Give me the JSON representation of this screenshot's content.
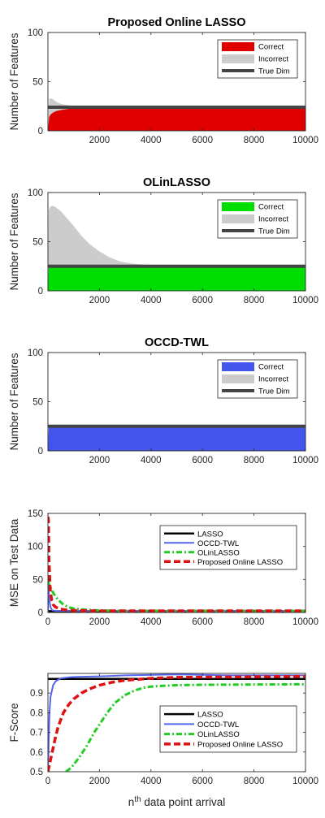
{
  "chart_data": [
    {
      "type": "area",
      "title": "Proposed Online LASSO",
      "ylabel": "Number of Features",
      "xlabel": "",
      "xlim": [
        0,
        10000
      ],
      "ylim": [
        0,
        100
      ],
      "xticks": [
        "2000",
        "4000",
        "6000",
        "8000",
        "10000"
      ],
      "yticks": [
        "0",
        "50",
        "100"
      ],
      "true_dim": 24,
      "legend": {
        "position": "top-right",
        "entries": [
          "Correct",
          "Incorrect",
          "True Dim"
        ]
      },
      "series": [
        {
          "name": "Correct",
          "color": "#e00000",
          "x": [
            0,
            50,
            100,
            150,
            200,
            300,
            400,
            600,
            800,
            1000,
            1500,
            2000,
            3000,
            5000,
            10000
          ],
          "values": [
            0,
            14,
            16.5,
            17.5,
            18.5,
            19.8,
            20.6,
            21.6,
            22.2,
            22.6,
            23.1,
            23.4,
            23.7,
            23.9,
            24
          ]
        },
        {
          "name": "Incorrect",
          "color": "#cccccc",
          "x": [
            0,
            50,
            100,
            200,
            300,
            400,
            500,
            700,
            1000,
            1500,
            2000,
            3000,
            10000
          ],
          "values": [
            0,
            32,
            33,
            32,
            30,
            28.5,
            27.5,
            26.3,
            25.4,
            24.8,
            24.5,
            24.3,
            24.3
          ]
        }
      ]
    },
    {
      "type": "area",
      "title": "OLinLASSO",
      "ylabel": "Number of Features",
      "xlabel": "",
      "xlim": [
        0,
        10000
      ],
      "ylim": [
        0,
        100
      ],
      "xticks": [
        "2000",
        "4000",
        "6000",
        "8000",
        "10000"
      ],
      "yticks": [
        "0",
        "50",
        "100"
      ],
      "true_dim": 25,
      "legend": {
        "position": "top-right",
        "entries": [
          "Correct",
          "Incorrect",
          "True Dim"
        ]
      },
      "series": [
        {
          "name": "Correct",
          "color": "#00dd00",
          "x": [
            0,
            30,
            10000
          ],
          "values": [
            0,
            25,
            25
          ]
        },
        {
          "name": "Incorrect",
          "color": "#cccccc",
          "x": [
            0,
            30,
            100,
            200,
            300,
            500,
            700,
            1000,
            1300,
            1600,
            2000,
            2400,
            2800,
            3200,
            3600,
            4000,
            5000,
            10000
          ],
          "values": [
            0,
            82,
            86,
            86.5,
            85,
            81,
            75,
            66,
            56,
            48,
            40,
            34,
            30,
            28,
            27,
            26.3,
            26,
            26
          ]
        }
      ]
    },
    {
      "type": "area",
      "title": "OCCD-TWL",
      "ylabel": "Number of Features",
      "xlabel": "",
      "xlim": [
        0,
        10000
      ],
      "ylim": [
        0,
        100
      ],
      "xticks": [
        "2000",
        "4000",
        "6000",
        "8000",
        "10000"
      ],
      "yticks": [
        "0",
        "50",
        "100"
      ],
      "true_dim": 25,
      "legend": {
        "position": "top-right",
        "entries": [
          "Correct",
          "Incorrect",
          "True Dim"
        ]
      },
      "series": [
        {
          "name": "Correct",
          "color": "#4455ee",
          "x": [
            0,
            30,
            10000
          ],
          "values": [
            0,
            24,
            24
          ]
        },
        {
          "name": "Incorrect",
          "color": "#cccccc",
          "x": [
            0,
            30,
            10000
          ],
          "values": [
            0,
            24.5,
            24.5
          ]
        }
      ]
    },
    {
      "type": "line",
      "title": "",
      "ylabel": "MSE on Test Data",
      "xlabel": "",
      "xlim": [
        0,
        10000
      ],
      "ylim": [
        0,
        150
      ],
      "xticks": [
        "0",
        "2000",
        "4000",
        "6000",
        "8000",
        "10000"
      ],
      "yticks": [
        "0",
        "50",
        "100",
        "150"
      ],
      "legend": {
        "position": "top-right",
        "entries": [
          "LASSO",
          "OCCD-TWL",
          "OLinLASSO",
          "Proposed Online LASSO"
        ]
      },
      "series": [
        {
          "name": "LASSO",
          "color": "#000000",
          "x": [
            0,
            10000
          ],
          "values": [
            2,
            2
          ]
        },
        {
          "name": "OCCD-TWL",
          "color": "#5566ee",
          "x": [
            0,
            20,
            50,
            100,
            150,
            200,
            300,
            10000
          ],
          "values": [
            0,
            40,
            20,
            8,
            4,
            3,
            2.5,
            2.5
          ]
        },
        {
          "name": "OLinLASSO",
          "color": "#22cc22",
          "x": [
            0,
            20,
            50,
            100,
            200,
            300,
            400,
            600,
            800,
            1000,
            1500,
            2000,
            3000,
            10000
          ],
          "values": [
            50,
            46,
            42,
            38,
            30,
            24,
            19,
            12,
            8,
            6,
            4,
            3,
            2.5,
            2.5
          ]
        },
        {
          "name": "Proposed Online LASSO",
          "color": "#dd1111",
          "x": [
            0,
            20,
            40,
            60,
            80,
            100,
            150,
            200,
            300,
            500,
            800,
            1000,
            2000,
            10000
          ],
          "values": [
            145,
            140,
            80,
            62,
            40,
            30,
            18,
            12,
            8,
            5,
            3.5,
            3,
            2.5,
            2.5
          ]
        }
      ]
    },
    {
      "type": "line",
      "title": "",
      "ylabel": "F-Score",
      "xlabel": "nth data point arrival",
      "xlim": [
        0,
        10000
      ],
      "ylim": [
        0.5,
        1
      ],
      "xticks": [
        "0",
        "2000",
        "4000",
        "6000",
        "8000",
        "10000"
      ],
      "yticks": [
        "0.5",
        "0.6",
        "0.7",
        "0.8",
        "0.9"
      ],
      "legend": {
        "position": "bottom-right",
        "entries": [
          "LASSO",
          "OCCD-TWL",
          "OLinLASSO",
          "Proposed Online LASSO"
        ]
      },
      "series": [
        {
          "name": "LASSO",
          "color": "#000000",
          "x": [
            0,
            10000
          ],
          "values": [
            0.972,
            0.972
          ]
        },
        {
          "name": "OCCD-TWL",
          "color": "#5566ee",
          "x": [
            0,
            30,
            60,
            100,
            200,
            300,
            500,
            800,
            1000,
            2000,
            3000,
            5000,
            7000,
            10000
          ],
          "values": [
            0.5,
            0.65,
            0.8,
            0.88,
            0.94,
            0.96,
            0.975,
            0.98,
            0.982,
            0.985,
            0.99,
            0.995,
            0.99,
            0.99
          ]
        },
        {
          "name": "OLinLASSO",
          "color": "#22cc22",
          "x": [
            700,
            900,
            1200,
            1500,
            1800,
            2000,
            2300,
            2600,
            3000,
            3400,
            3800,
            4200,
            5000,
            6000,
            10000
          ],
          "values": [
            0.5,
            0.52,
            0.57,
            0.63,
            0.7,
            0.74,
            0.8,
            0.85,
            0.89,
            0.915,
            0.93,
            0.935,
            0.94,
            0.942,
            0.945
          ]
        },
        {
          "name": "Proposed Online LASSO",
          "color": "#dd1111",
          "x": [
            0,
            100,
            200,
            300,
            400,
            600,
            800,
            1000,
            1300,
            1600,
            2000,
            2500,
            3000,
            4000,
            5000,
            10000
          ],
          "values": [
            0.5,
            0.56,
            0.62,
            0.68,
            0.73,
            0.8,
            0.84,
            0.87,
            0.9,
            0.92,
            0.94,
            0.955,
            0.965,
            0.975,
            0.98,
            0.985
          ]
        }
      ]
    }
  ]
}
